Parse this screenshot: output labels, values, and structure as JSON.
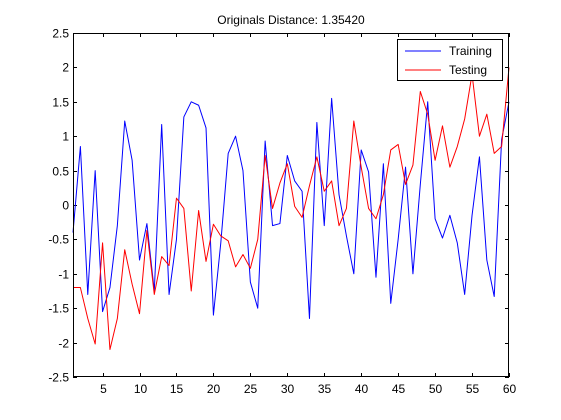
{
  "chart_data": {
    "type": "line",
    "title": "Originals Distance:  1.35420",
    "xlabel": "",
    "ylabel": "",
    "xlim": [
      1,
      60
    ],
    "ylim": [
      -2.5,
      2.5
    ],
    "x_ticks": [
      5,
      10,
      15,
      20,
      25,
      30,
      35,
      40,
      45,
      50,
      55,
      60
    ],
    "y_ticks": [
      -2.5,
      -2,
      -1.5,
      -1,
      -0.5,
      0,
      0.5,
      1,
      1.5,
      2,
      2.5
    ],
    "grid": false,
    "legend_position": "top-right",
    "x": [
      1,
      2,
      3,
      4,
      5,
      6,
      7,
      8,
      9,
      10,
      11,
      12,
      13,
      14,
      15,
      16,
      17,
      18,
      19,
      20,
      21,
      22,
      23,
      24,
      25,
      26,
      27,
      28,
      29,
      30,
      31,
      32,
      33,
      34,
      35,
      36,
      37,
      38,
      39,
      40,
      41,
      42,
      43,
      44,
      45,
      46,
      47,
      48,
      49,
      50,
      51,
      52,
      53,
      54,
      55,
      56,
      57,
      58,
      59,
      60
    ],
    "series": [
      {
        "name": "Training",
        "color": "#0000ff",
        "values": [
          -0.4,
          0.85,
          -1.3,
          0.5,
          -1.55,
          -1.2,
          -0.3,
          1.22,
          0.65,
          -0.8,
          -0.27,
          -1.25,
          1.17,
          -1.3,
          -0.5,
          1.28,
          1.5,
          1.45,
          1.12,
          -1.6,
          -0.55,
          0.75,
          1.0,
          0.5,
          -1.12,
          -1.5,
          0.93,
          -0.3,
          -0.27,
          0.72,
          0.35,
          0.2,
          -1.65,
          1.2,
          -0.3,
          1.55,
          0.15,
          -0.45,
          -1.0,
          0.8,
          0.48,
          -1.05,
          0.6,
          -1.43,
          -0.5,
          0.55,
          -1.0,
          0.3,
          1.5,
          -0.2,
          -0.48,
          -0.15,
          -0.55,
          -1.3,
          -0.15,
          0.7,
          -0.8,
          -1.33,
          0.95,
          1.5
        ]
      },
      {
        "name": "Testing",
        "color": "#ff0000",
        "values": [
          -1.2,
          -1.2,
          -1.65,
          -2.02,
          -0.55,
          -2.1,
          -1.65,
          -0.65,
          -1.15,
          -1.58,
          -0.37,
          -1.3,
          -0.75,
          -0.88,
          0.1,
          -0.05,
          -1.25,
          -0.08,
          -0.82,
          -0.28,
          -0.45,
          -0.52,
          -0.9,
          -0.72,
          -0.92,
          -0.5,
          0.72,
          -0.05,
          0.32,
          0.6,
          -0.02,
          -0.18,
          0.28,
          0.7,
          0.2,
          0.35,
          -0.3,
          -0.05,
          1.22,
          0.55,
          -0.05,
          -0.2,
          0.15,
          0.8,
          0.88,
          0.3,
          0.58,
          1.65,
          1.32,
          0.65,
          1.15,
          0.55,
          0.85,
          1.25,
          1.9,
          1.0,
          1.32,
          0.75,
          0.85,
          2.0
        ]
      }
    ]
  }
}
